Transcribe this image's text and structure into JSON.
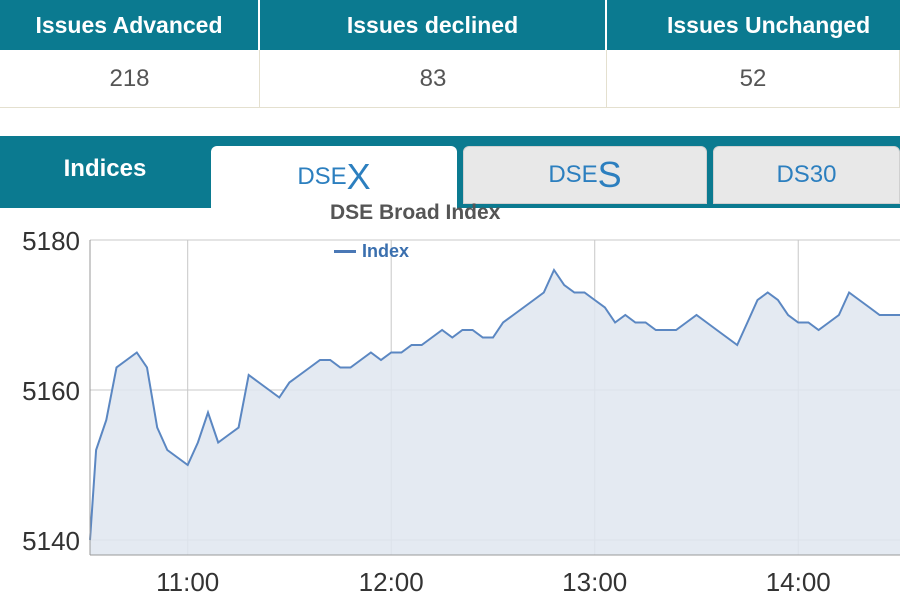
{
  "stats": {
    "headers": [
      "Issues Advanced",
      "Issues declined",
      "Issues Unchanged"
    ],
    "values": [
      "218",
      "83",
      "52"
    ]
  },
  "tabs": {
    "section_label": "Indices",
    "items": [
      {
        "prefix": "DSE",
        "big": "X",
        "active": true
      },
      {
        "prefix": "DSE",
        "big": "S",
        "active": false
      },
      {
        "prefix": "DS30",
        "big": "",
        "active": false
      }
    ]
  },
  "colors": {
    "header_bg": "#0b7a90",
    "line": "#5b87c2",
    "area": "#dfe6f0",
    "tab_text": "#2c7fbf"
  },
  "chart_data": {
    "type": "area",
    "title": "DSE Broad Index",
    "legend": [
      "Index"
    ],
    "xlabel": "",
    "ylabel": "",
    "x_ticks": [
      "11:00",
      "12:00",
      "13:00",
      "14:00"
    ],
    "x_tick_values": [
      11.0,
      12.0,
      13.0,
      14.0
    ],
    "xlim": [
      10.52,
      14.5
    ],
    "ylim": [
      5138,
      5180
    ],
    "y_ticks": [
      5140,
      5160,
      5180
    ],
    "series": [
      {
        "name": "Index",
        "x": [
          10.52,
          10.55,
          10.6,
          10.65,
          10.7,
          10.75,
          10.8,
          10.85,
          10.9,
          10.95,
          11.0,
          11.05,
          11.1,
          11.15,
          11.2,
          11.25,
          11.3,
          11.35,
          11.4,
          11.45,
          11.5,
          11.55,
          11.6,
          11.65,
          11.7,
          11.75,
          11.8,
          11.85,
          11.9,
          11.95,
          12.0,
          12.05,
          12.1,
          12.15,
          12.2,
          12.25,
          12.3,
          12.35,
          12.4,
          12.45,
          12.5,
          12.55,
          12.6,
          12.65,
          12.7,
          12.75,
          12.8,
          12.85,
          12.9,
          12.95,
          13.0,
          13.05,
          13.1,
          13.15,
          13.2,
          13.25,
          13.3,
          13.35,
          13.4,
          13.45,
          13.5,
          13.55,
          13.6,
          13.65,
          13.7,
          13.75,
          13.8,
          13.85,
          13.9,
          13.95,
          14.0,
          14.05,
          14.1,
          14.15,
          14.2,
          14.25,
          14.3,
          14.35,
          14.4,
          14.45,
          14.5
        ],
        "values": [
          5140,
          5152,
          5156,
          5163,
          5164,
          5165,
          5163,
          5155,
          5152,
          5151,
          5150,
          5153,
          5157,
          5153,
          5154,
          5155,
          5162,
          5161,
          5160,
          5159,
          5161,
          5162,
          5163,
          5164,
          5164,
          5163,
          5163,
          5164,
          5165,
          5164,
          5165,
          5165,
          5166,
          5166,
          5167,
          5168,
          5167,
          5168,
          5168,
          5167,
          5167,
          5169,
          5170,
          5171,
          5172,
          5173,
          5176,
          5174,
          5173,
          5173,
          5172,
          5171,
          5169,
          5170,
          5169,
          5169,
          5168,
          5168,
          5168,
          5169,
          5170,
          5169,
          5168,
          5167,
          5166,
          5169,
          5172,
          5173,
          5172,
          5170,
          5169,
          5169,
          5168,
          5169,
          5170,
          5173,
          5172,
          5171,
          5170,
          5170,
          5170
        ]
      }
    ]
  }
}
